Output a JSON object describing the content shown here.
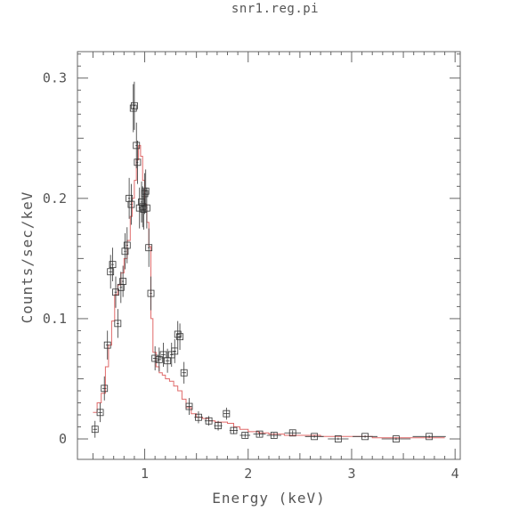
{
  "chart_data": {
    "type": "scatter",
    "title": "snr1.reg.pi",
    "xlabel": "Energy (keV)",
    "ylabel": "Counts/sec/keV",
    "xlim": [
      0.35,
      4.05
    ],
    "ylim": [
      -0.017,
      0.322
    ],
    "xticks": [
      1,
      2,
      3,
      4
    ],
    "xtick_labels": [
      "1",
      "2",
      "3",
      "4"
    ],
    "yticks": [
      0,
      0.1,
      0.2,
      0.3
    ],
    "ytick_labels": [
      "0",
      "0.1",
      "0.2",
      "0.3"
    ],
    "grid": false,
    "colors": {
      "data": "#333333",
      "model": "#e06a6a",
      "axes": "#666666",
      "text": "#555555"
    },
    "series": [
      {
        "kind": "data",
        "x": [
          0.52,
          0.57,
          0.61,
          0.64,
          0.67,
          0.69,
          0.72,
          0.74,
          0.77,
          0.79,
          0.81,
          0.83,
          0.85,
          0.87,
          0.89,
          0.9,
          0.92,
          0.93,
          0.95,
          0.97,
          0.98,
          0.99,
          1.0,
          1.01,
          1.02,
          1.04,
          1.06,
          1.1,
          1.14,
          1.18,
          1.22,
          1.26,
          1.29,
          1.32,
          1.34,
          1.38,
          1.43,
          1.52,
          1.62,
          1.71,
          1.79,
          1.86,
          1.97,
          2.11,
          2.25,
          2.43,
          2.64,
          2.87,
          3.13,
          3.43,
          3.75
        ],
        "y": [
          0.008,
          0.022,
          0.042,
          0.078,
          0.139,
          0.145,
          0.122,
          0.096,
          0.126,
          0.131,
          0.156,
          0.161,
          0.2,
          0.195,
          0.275,
          0.277,
          0.244,
          0.23,
          0.192,
          0.197,
          0.193,
          0.191,
          0.204,
          0.206,
          0.192,
          0.159,
          0.121,
          0.067,
          0.066,
          0.07,
          0.065,
          0.07,
          0.073,
          0.087,
          0.085,
          0.055,
          0.027,
          0.018,
          0.015,
          0.011,
          0.021,
          0.007,
          0.003,
          0.004,
          0.003,
          0.005,
          0.002,
          0.0,
          0.002,
          0.0,
          0.002
        ],
        "xerr": [
          0.02,
          0.02,
          0.02,
          0.015,
          0.015,
          0.012,
          0.012,
          0.012,
          0.012,
          0.01,
          0.01,
          0.01,
          0.01,
          0.01,
          0.008,
          0.008,
          0.008,
          0.008,
          0.008,
          0.008,
          0.006,
          0.006,
          0.006,
          0.006,
          0.006,
          0.01,
          0.01,
          0.02,
          0.02,
          0.02,
          0.02,
          0.015,
          0.015,
          0.015,
          0.015,
          0.02,
          0.025,
          0.04,
          0.04,
          0.04,
          0.03,
          0.04,
          0.05,
          0.06,
          0.07,
          0.08,
          0.09,
          0.1,
          0.12,
          0.14,
          0.16
        ],
        "yerr": [
          0.007,
          0.008,
          0.01,
          0.012,
          0.014,
          0.014,
          0.013,
          0.012,
          0.013,
          0.013,
          0.015,
          0.015,
          0.017,
          0.017,
          0.02,
          0.02,
          0.019,
          0.018,
          0.017,
          0.017,
          0.017,
          0.017,
          0.017,
          0.018,
          0.017,
          0.016,
          0.014,
          0.01,
          0.01,
          0.01,
          0.01,
          0.01,
          0.01,
          0.011,
          0.011,
          0.009,
          0.007,
          0.005,
          0.004,
          0.004,
          0.005,
          0.003,
          0.002,
          0.002,
          0.002,
          0.002,
          0.001,
          0.001,
          0.001,
          0.001,
          0.001
        ]
      },
      {
        "kind": "model",
        "x": [
          0.5,
          0.54,
          0.58,
          0.62,
          0.65,
          0.68,
          0.71,
          0.74,
          0.77,
          0.8,
          0.83,
          0.86,
          0.88,
          0.9,
          0.92,
          0.94,
          0.96,
          0.98,
          1.0,
          1.02,
          1.04,
          1.06,
          1.08,
          1.11,
          1.14,
          1.17,
          1.2,
          1.24,
          1.28,
          1.32,
          1.36,
          1.4,
          1.45,
          1.5,
          1.56,
          1.62,
          1.68,
          1.74,
          1.8,
          1.86,
          1.92,
          2.0,
          2.1,
          2.2,
          2.35,
          2.5,
          2.7,
          2.9,
          3.2,
          3.5,
          3.9
        ],
        "y": [
          0.022,
          0.03,
          0.038,
          0.06,
          0.078,
          0.098,
          0.12,
          0.128,
          0.138,
          0.15,
          0.165,
          0.185,
          0.2,
          0.215,
          0.232,
          0.244,
          0.235,
          0.215,
          0.195,
          0.18,
          0.16,
          0.1,
          0.072,
          0.06,
          0.055,
          0.053,
          0.05,
          0.048,
          0.044,
          0.04,
          0.033,
          0.026,
          0.021,
          0.018,
          0.017,
          0.015,
          0.014,
          0.014,
          0.013,
          0.01,
          0.008,
          0.006,
          0.005,
          0.004,
          0.003,
          0.003,
          0.002,
          0.002,
          0.001,
          0.001,
          0.001
        ]
      }
    ]
  }
}
